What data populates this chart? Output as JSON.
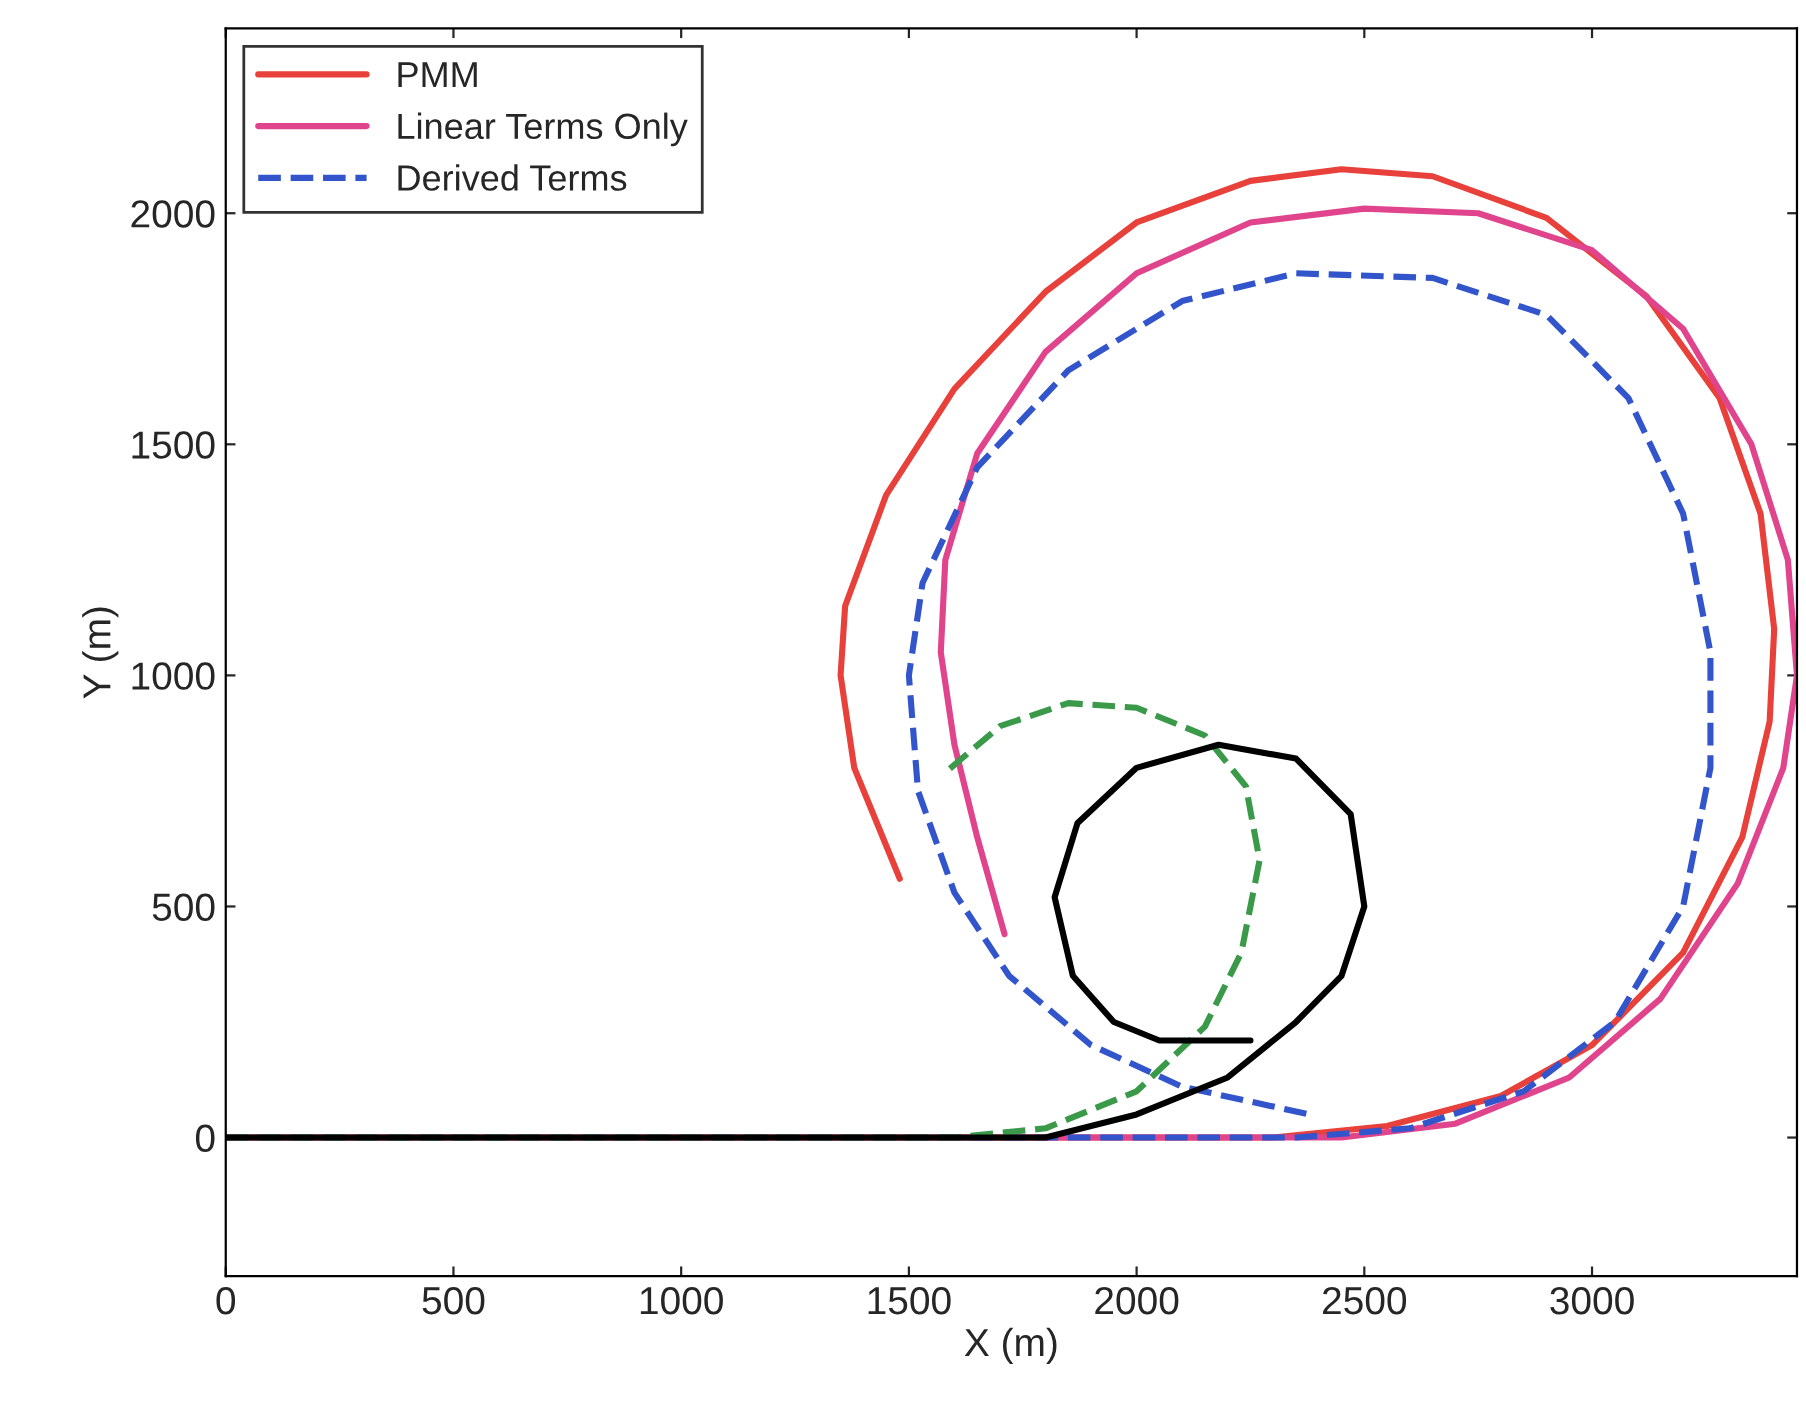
{
  "chart_data": {
    "type": "line",
    "xlabel": "X (m)",
    "ylabel": "Y (m)",
    "xlim": [
      0,
      3450
    ],
    "ylim": [
      -300,
      2400
    ],
    "xticks": [
      0,
      500,
      1000,
      1500,
      2000,
      2500,
      3000
    ],
    "yticks": [
      0,
      500,
      1000,
      1500,
      2000
    ],
    "grid": false,
    "legend": "top left",
    "series": [
      {
        "name": "PMM",
        "color": "#e8403a",
        "line_style": "solid",
        "x": [
          0,
          2300,
          2550,
          2800,
          3000,
          3200,
          3330,
          3390,
          3400,
          3370,
          3280,
          3120,
          2900,
          2650,
          2450,
          2250,
          2000,
          1800,
          1600,
          1450,
          1360,
          1350,
          1380,
          1430,
          1480
        ],
        "values": [
          0,
          0,
          25,
          90,
          200,
          400,
          650,
          900,
          1100,
          1350,
          1600,
          1820,
          1990,
          2080,
          2095,
          2070,
          1980,
          1830,
          1620,
          1390,
          1150,
          1000,
          800,
          680,
          560
        ]
      },
      {
        "name": "Linear Terms Only",
        "color": "#e0448c",
        "line_style": "solid",
        "x": [
          0,
          2450,
          2700,
          2950,
          3150,
          3320,
          3420,
          3450,
          3430,
          3350,
          3200,
          3000,
          2750,
          2500,
          2250,
          2000,
          1800,
          1650,
          1580,
          1570,
          1600,
          1650,
          1710
        ],
        "values": [
          0,
          0,
          30,
          130,
          300,
          550,
          800,
          1000,
          1250,
          1500,
          1750,
          1920,
          2000,
          2010,
          1980,
          1870,
          1700,
          1480,
          1250,
          1050,
          850,
          650,
          440
        ]
      },
      {
        "name": "Derived Terms",
        "color": "#3355cc",
        "line_style": "dashed",
        "x": [
          0,
          2350,
          2600,
          2850,
          3050,
          3200,
          3260,
          3260,
          3200,
          3080,
          2900,
          2650,
          2350,
          2100,
          1850,
          1650,
          1530,
          1500,
          1520,
          1600,
          1720,
          1900,
          2100,
          2380
        ],
        "values": [
          0,
          0,
          20,
          100,
          250,
          500,
          800,
          1050,
          1350,
          1600,
          1780,
          1860,
          1870,
          1810,
          1660,
          1450,
          1200,
          1000,
          750,
          530,
          350,
          200,
          110,
          50
        ]
      },
      {
        "color": "#3a9a4a",
        "line_style": "dashed",
        "x": [
          0,
          1600,
          1800,
          2000,
          2150,
          2230,
          2270,
          2240,
          2150,
          2000,
          1850,
          1700,
          1580
        ],
        "values": [
          0,
          0,
          20,
          100,
          240,
          400,
          600,
          760,
          870,
          930,
          940,
          890,
          790
        ]
      },
      {
        "color": "#000000",
        "line_style": "solid",
        "x": [
          0,
          1800,
          2000,
          2200,
          2350,
          2450,
          2500,
          2470,
          2350,
          2180,
          2000,
          1870,
          1820,
          1860,
          1950,
          2050,
          2250
        ],
        "values": [
          0,
          0,
          50,
          130,
          250,
          350,
          500,
          700,
          820,
          850,
          800,
          680,
          520,
          350,
          250,
          210,
          210
        ]
      }
    ]
  }
}
